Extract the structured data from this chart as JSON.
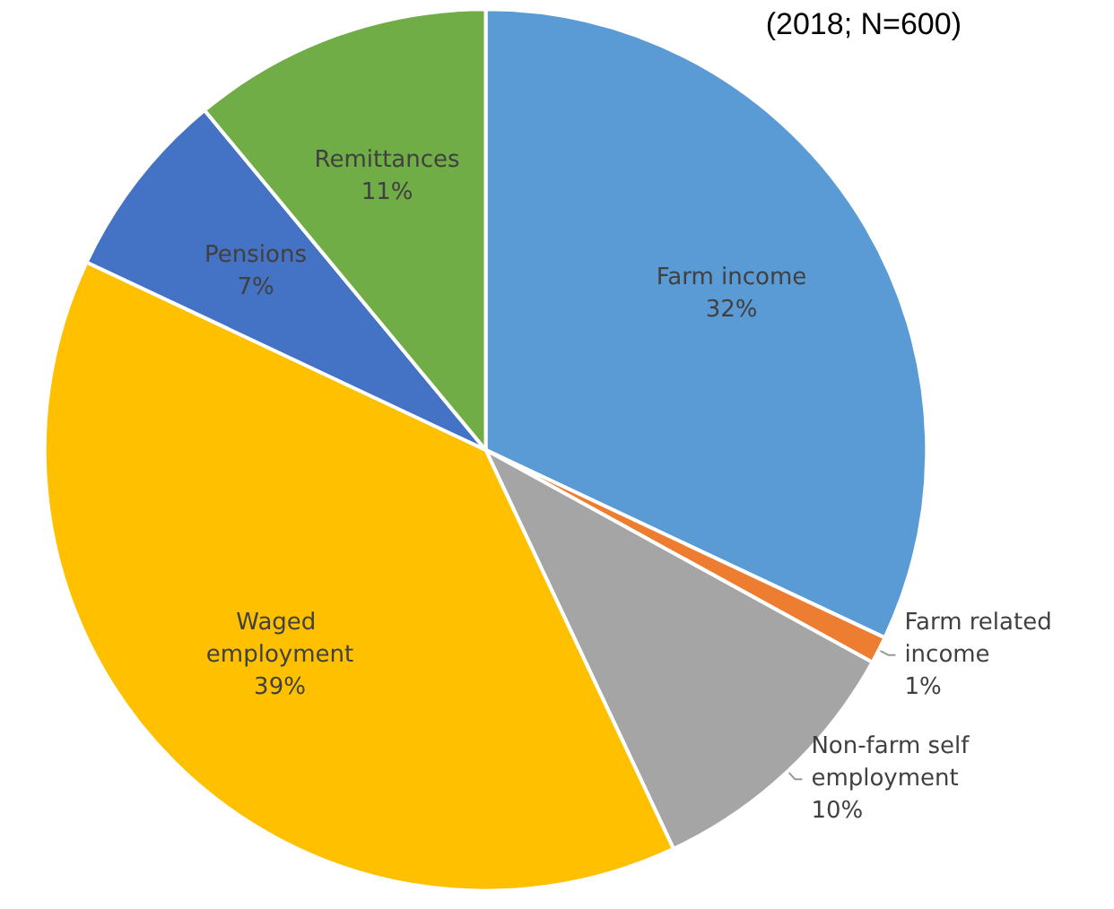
{
  "chart_data": {
    "type": "pie",
    "title": "(2018; N=600)",
    "categories": [
      "Farm income",
      "Farm related income",
      "Non-farm self employment",
      "Waged employment",
      "Pensions",
      "Remittances"
    ],
    "values": [
      32,
      1,
      10,
      39,
      7,
      11
    ],
    "colors": [
      "#5b9bd5",
      "#ed7d31",
      "#a5a5a5",
      "#ffc000",
      "#4472c4",
      "#70ad47"
    ],
    "value_labels": [
      "32%",
      "1%",
      "10%",
      "39%",
      "7%",
      "11%"
    ],
    "legend": false
  }
}
